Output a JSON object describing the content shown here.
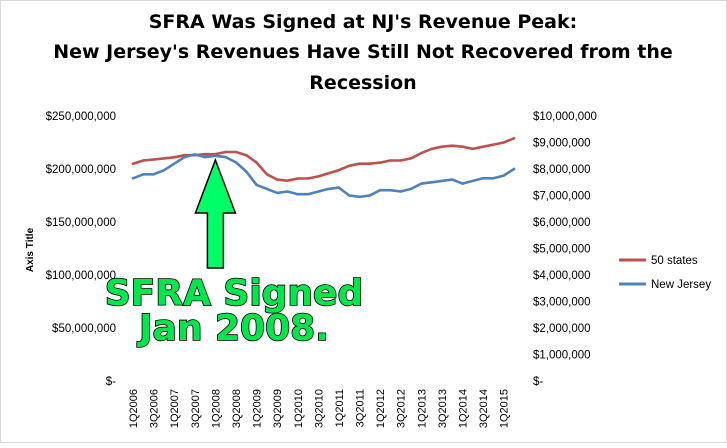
{
  "chart_data": {
    "type": "line",
    "title_lines": [
      "SFRA Was Signed at NJ's Revenue Peak:",
      "New Jersey's Revenues Have Still Not Recovered from the",
      "Recession"
    ],
    "ylabel": "Axis Title",
    "left_axis": {
      "ylim": [
        0,
        250000000
      ],
      "tick_labels": [
        "$-",
        "$50,000,000",
        "$100,000,000",
        "$150,000,000",
        "$200,000,000",
        "$250,000,000"
      ]
    },
    "right_axis": {
      "ylim": [
        0,
        10000000
      ],
      "tick_labels": [
        "$-",
        "$1,000,000",
        "$2,000,000",
        "$3,000,000",
        "$4,000,000",
        "$5,000,000",
        "$6,000,000",
        "$7,000,000",
        "$8,000,000",
        "$9,000,000",
        "$10,000,000"
      ]
    },
    "x": [
      "1Q2006",
      "2Q2006",
      "3Q2006",
      "4Q2006",
      "1Q2007",
      "2Q2007",
      "3Q2007",
      "4Q2007",
      "1Q2008",
      "2Q2008",
      "3Q2008",
      "4Q2008",
      "1Q2009",
      "2Q2009",
      "3Q2009",
      "4Q2009",
      "1Q2010",
      "2Q2010",
      "3Q2010",
      "4Q2010",
      "1Q2011",
      "2Q2011",
      "3Q2011",
      "4Q2011",
      "1Q2012",
      "2Q2012",
      "3Q2012",
      "4Q2012",
      "1Q2013",
      "2Q2013",
      "3Q2013",
      "4Q2013",
      "1Q2014",
      "2Q2014",
      "3Q2014",
      "4Q2014",
      "1Q2015",
      "2Q2015"
    ],
    "x_tick_labels": [
      "1Q2006",
      "3Q2006",
      "1Q2007",
      "3Q2007",
      "1Q2008",
      "3Q2008",
      "1Q2009",
      "3Q2009",
      "1Q2010",
      "3Q2010",
      "1Q2011",
      "3Q2011",
      "1Q2012",
      "3Q2012",
      "1Q2013",
      "3Q2013",
      "1Q2014",
      "3Q2014",
      "1Q2015"
    ],
    "series": [
      {
        "name": "50 states",
        "axis": "left",
        "color": "#c0504d",
        "values": [
          205000000,
          208000000,
          209000000,
          210000000,
          211000000,
          213000000,
          213000000,
          214000000,
          214000000,
          216000000,
          216000000,
          213000000,
          206000000,
          195000000,
          190000000,
          189000000,
          191000000,
          191000000,
          193000000,
          196000000,
          199000000,
          203000000,
          205000000,
          205000000,
          206000000,
          208000000,
          208000000,
          210000000,
          215000000,
          219000000,
          221000000,
          222000000,
          221000000,
          219000000,
          221000000,
          223000000,
          225000000,
          229000000
        ]
      },
      {
        "name": "New Jersey",
        "axis": "right",
        "color": "#4f81bd",
        "values": [
          7650000,
          7800000,
          7800000,
          7950000,
          8200000,
          8450000,
          8550000,
          8450000,
          8500000,
          8450000,
          8250000,
          7900000,
          7400000,
          7250000,
          7100000,
          7150000,
          7050000,
          7050000,
          7150000,
          7250000,
          7300000,
          7000000,
          6950000,
          7000000,
          7200000,
          7200000,
          7150000,
          7250000,
          7450000,
          7500000,
          7550000,
          7600000,
          7450000,
          7550000,
          7650000,
          7650000,
          7750000,
          8000000
        ]
      }
    ],
    "legend": {
      "placement": "right"
    },
    "annotation": {
      "lines": [
        "SFRA Signed",
        "Jan 2008."
      ],
      "arrow_color": "#00ff66",
      "points_to": "1Q2008"
    },
    "grid": false
  }
}
